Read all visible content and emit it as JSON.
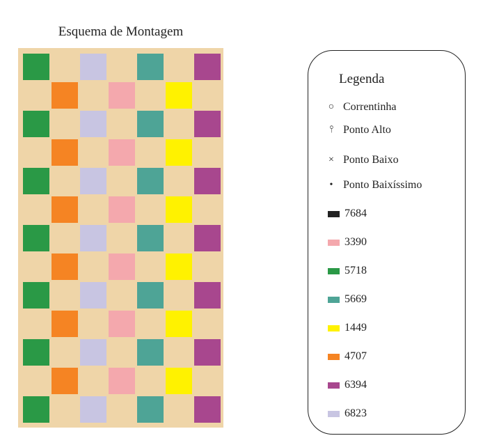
{
  "diagram": {
    "title": "Esquema de Montagem",
    "pattern_rows": [
      [
        "5718",
        "",
        "6823",
        "",
        "5669",
        "",
        "6394"
      ],
      [
        "",
        "4707",
        "",
        "3390",
        "",
        "1449",
        ""
      ],
      [
        "5718",
        "",
        "6823",
        "",
        "5669",
        "",
        "6394"
      ],
      [
        "",
        "4707",
        "",
        "3390",
        "",
        "1449",
        ""
      ],
      [
        "5718",
        "",
        "6823",
        "",
        "5669",
        "",
        "6394"
      ],
      [
        "",
        "4707",
        "",
        "3390",
        "",
        "1449",
        ""
      ],
      [
        "5718",
        "",
        "6823",
        "",
        "5669",
        "",
        "6394"
      ],
      [
        "",
        "4707",
        "",
        "3390",
        "",
        "1449",
        ""
      ],
      [
        "5718",
        "",
        "6823",
        "",
        "5669",
        "",
        "6394"
      ],
      [
        "",
        "4707",
        "",
        "3390",
        "",
        "1449",
        ""
      ],
      [
        "5718",
        "",
        "6823",
        "",
        "5669",
        "",
        "6394"
      ],
      [
        "",
        "4707",
        "",
        "3390",
        "",
        "1449",
        ""
      ],
      [
        "5718",
        "",
        "6823",
        "",
        "5669",
        "",
        "6394"
      ]
    ],
    "background_color": "#efd5a8"
  },
  "legend": {
    "title": "Legenda",
    "symbols": [
      {
        "icon": "circle-icon",
        "glyph": "○",
        "label": "Correntinha"
      },
      {
        "icon": "tall-stitch-icon",
        "glyph": "⫯",
        "label": "Ponto Alto"
      },
      {
        "icon": "cross-icon",
        "glyph": "×",
        "label": "Ponto Baixo"
      },
      {
        "icon": "dot-icon",
        "glyph": "•",
        "label": "Ponto Baixíssimo"
      }
    ],
    "colors": [
      {
        "code": "7684",
        "hex": "#222222"
      },
      {
        "code": "3390",
        "hex": "#f4a8ad"
      },
      {
        "code": "5718",
        "hex": "#2a9946"
      },
      {
        "code": "5669",
        "hex": "#4ea496"
      },
      {
        "code": "1449",
        "hex": "#fff200"
      },
      {
        "code": "4707",
        "hex": "#f58423"
      },
      {
        "code": "6394",
        "hex": "#a8478e"
      },
      {
        "code": "6823",
        "hex": "#c8c5e2"
      }
    ]
  }
}
